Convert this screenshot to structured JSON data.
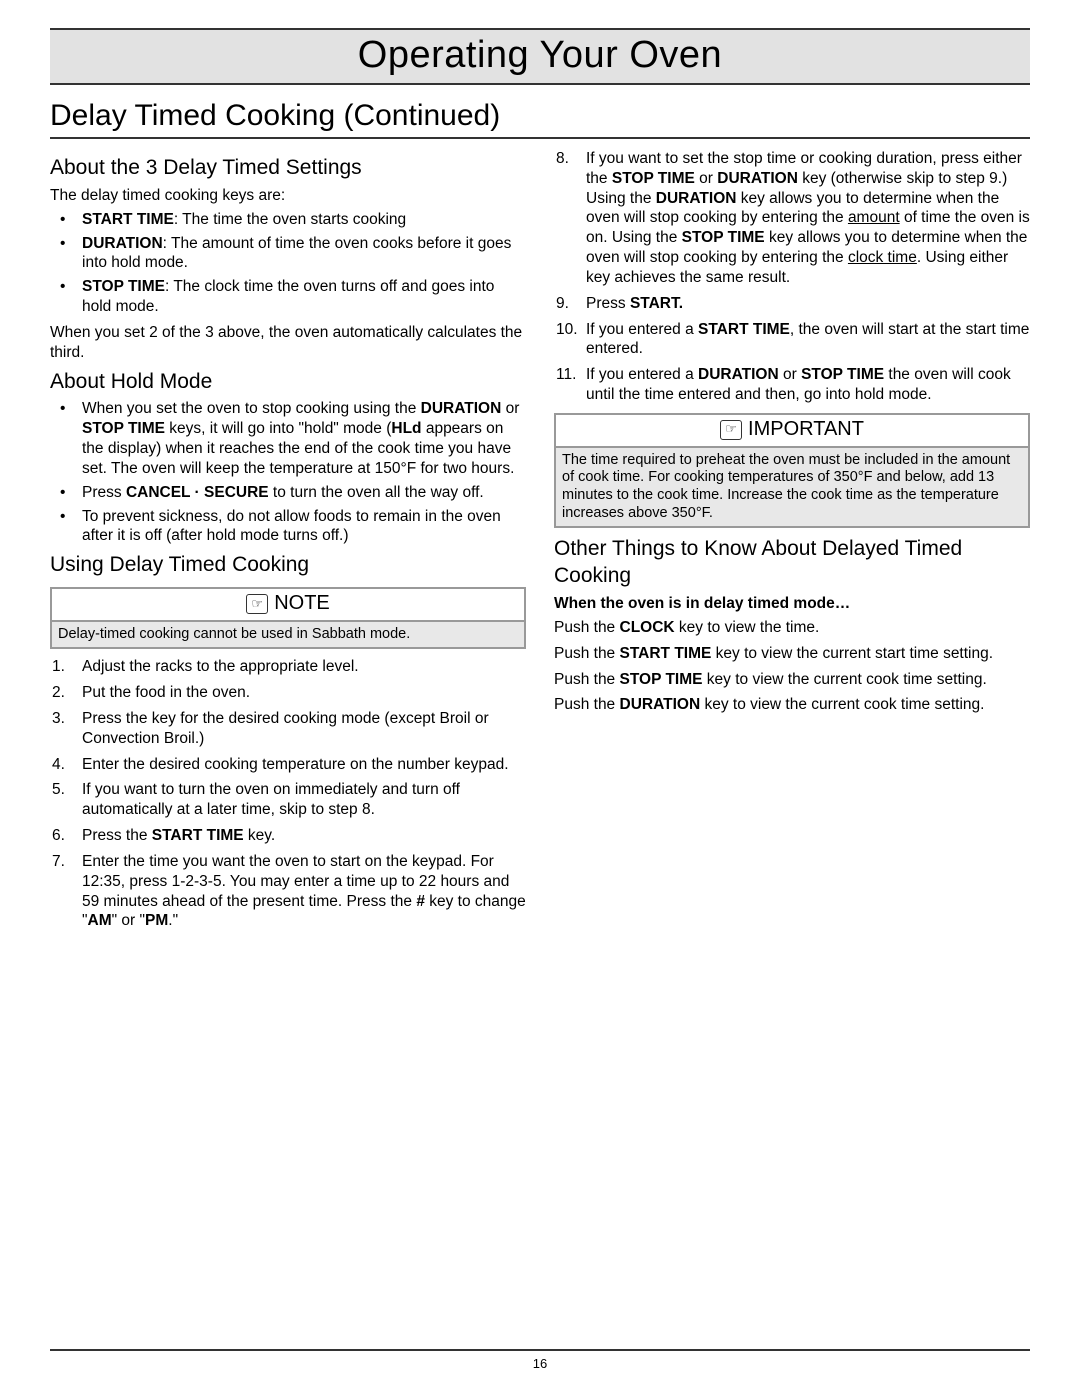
{
  "page": {
    "title": "Operating Your Oven",
    "section": "Delay Timed Cooking (Continued)",
    "pageNumber": "16"
  },
  "left": {
    "h_about3": "About the 3 Delay Timed Settings",
    "intro3": "The delay timed cooking keys are:",
    "b3": [
      {
        "label": "START TIME",
        "text": ": The time the oven starts cooking"
      },
      {
        "label": "DURATION",
        "text": ": The amount of time the oven cooks before it goes into hold mode."
      },
      {
        "label": "STOP TIME",
        "text": ": The clock time the oven turns off and goes into hold mode."
      }
    ],
    "after3": "When you set 2 of the 3 above, the oven automatically calculates the third.",
    "h_hold": "About Hold Mode",
    "hold_b1_pre": "When you set the oven to stop cooking using the ",
    "hold_b1_k1": "DURATION",
    "hold_b1_mid1": "  or ",
    "hold_b1_k2": "STOP TIME",
    "hold_b1_mid2": " keys, it will go into \"hold\" mode (",
    "hold_b1_k3": "HLd",
    "hold_b1_post": " appears on the display) when it reaches the end of the cook time you have set.  The oven will keep the temperature at 150°F for two hours.",
    "hold_b2_pre": "Press ",
    "hold_b2_k": "CANCEL · SECURE",
    "hold_b2_post": " to turn the oven all the way off.",
    "hold_b3": "To prevent sickness, do not allow foods to remain in the oven after it is off (after hold mode turns off.)",
    "h_using": "Using Delay Timed Cooking",
    "note_title": "NOTE",
    "note_body": "Delay-timed cooking cannot be used in Sabbath mode.",
    "steps": {
      "s1": "Adjust the racks to the appropriate level.",
      "s2": "Put the food in the oven.",
      "s3": "Press the key for the desired cooking mode (except Broil or Convection Broil.)",
      "s4": "Enter the desired cooking temperature on the number keypad.",
      "s5": "If you want to turn the oven on immediately and turn off automatically at a later time, skip to step 8.",
      "s6_pre": "Press the ",
      "s6_k": "START TIME",
      "s6_post": " key.",
      "s7_pre": "Enter the time you want the oven to start on the keypad. For 12:35, press 1-2-3-5. You may enter a time up to 22 hours and 59 minutes ahead of the present time. Press the ",
      "s7_k1": "#",
      "s7_mid": " key to change \"",
      "s7_k2": "AM",
      "s7_mid2": "\" or \"",
      "s7_k3": "PM",
      "s7_post": ".\""
    }
  },
  "right": {
    "steps": {
      "s8_pre": "If you want to set the stop time or cooking duration, press either the  ",
      "s8_k1": "STOP TIME",
      "s8_m1": " or ",
      "s8_k2": "DURATION",
      "s8_m2": " key (otherwise skip to step 9.) Using the ",
      "s8_k3": "DURATION",
      "s8_m3": " key allows you to determine when the oven will stop cooking by entering the ",
      "s8_u1": "amount",
      "s8_m4": " of time the oven is on. Using the ",
      "s8_k4": "STOP TIME",
      "s8_m5": " key allows you to determine when the oven will stop cooking by entering the ",
      "s8_u2": "clock time",
      "s8_m6": ". Using either key achieves the same result.",
      "s9_pre": "Press ",
      "s9_k": "START.",
      "s10_pre": "If you entered a ",
      "s10_k": "START TIME",
      "s10_post": ", the oven will start at the start time entered.",
      "s11_pre": "If you entered a ",
      "s11_k1": "DURATION",
      "s11_m1": "  or ",
      "s11_k2": "STOP TIME",
      "s11_post": " the oven will cook until the time entered and then, go into hold mode."
    },
    "imp_title": "IMPORTANT",
    "imp_body": "The time required to preheat the oven must be included in the amount of cook time. For cooking temperatures of 350°F and below, add 13 minutes to the cook time. Increase the cook time as the temperature increases above 350°F.",
    "h_other": "Other Things to Know About Delayed Timed Cooking",
    "other_sub": "When the oven is in delay timed mode…",
    "p1_pre": "Push the ",
    "p1_k": "CLOCK",
    "p1_post": " key to view the time.",
    "p2_pre": "Push the ",
    "p2_k": "START TIME",
    "p2_post": " key to view the current start time setting.",
    "p3_pre": "Push the ",
    "p3_k": "STOP TIME",
    "p3_post": " key to view the current cook time setting.",
    "p4_pre": "Push the ",
    "p4_k": "DURATION",
    "p4_post": " key to view the current cook time setting."
  }
}
